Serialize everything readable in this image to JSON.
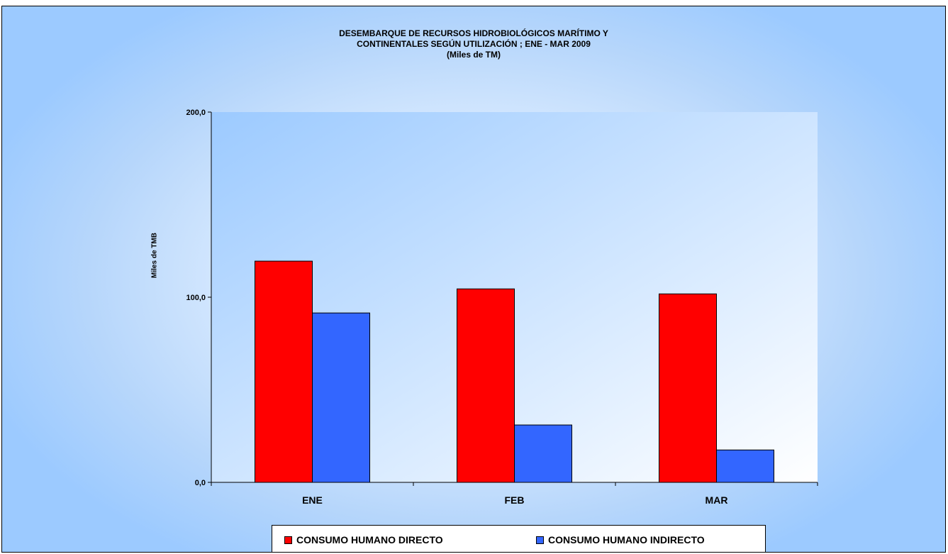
{
  "chart_data": {
    "type": "bar",
    "title_lines": [
      "DESEMBARQUE DE RECURSOS HIDROBIOLÓGICOS MARÍTIMO Y",
      "CONTINENTALES SEGÚN UTILIZACIÓN ; ENE  - MAR 2009",
      "(Miles de TM)"
    ],
    "ylabel": "Miles de TMB",
    "xlabel": "",
    "ylim": [
      0,
      200
    ],
    "ytick_labels": [
      "0,0",
      "100,0",
      "200,0"
    ],
    "yticks": [
      0,
      100,
      200
    ],
    "categories": [
      "ENE",
      "FEB",
      "MAR"
    ],
    "series": [
      {
        "name": "CONSUMO HUMANO DIRECTO",
        "color": "#ff0000",
        "values": [
          119.5,
          104.5,
          101.8
        ]
      },
      {
        "name": "CONSUMO HUMANO INDIRECTO",
        "color": "#3366ff",
        "values": [
          91.5,
          31.0,
          17.5
        ]
      }
    ],
    "grid": false,
    "legend_position": "bottom"
  }
}
